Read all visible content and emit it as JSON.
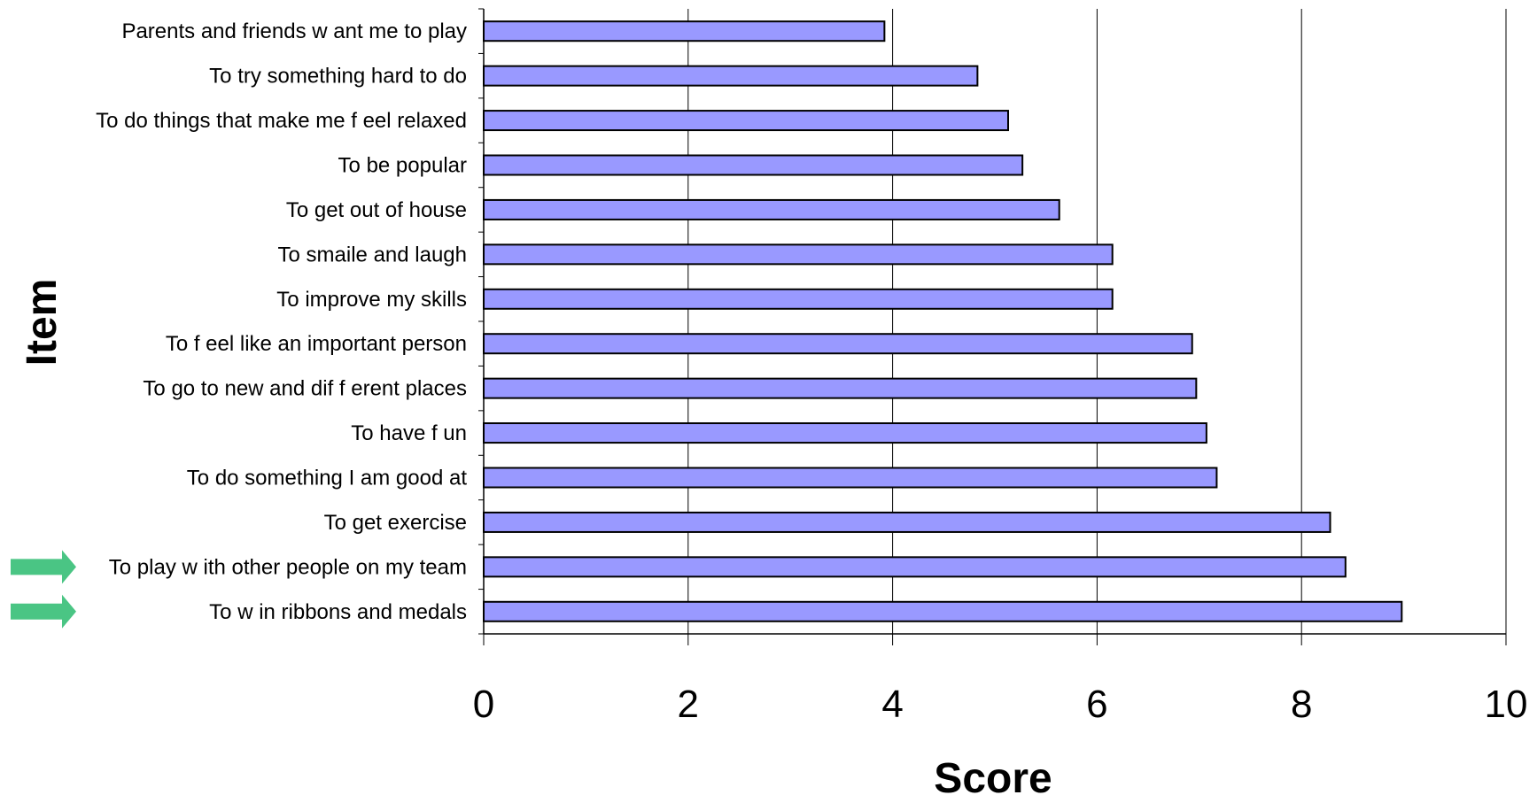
{
  "chart_data": {
    "type": "bar",
    "orientation": "horizontal",
    "categories": [
      "Parents and friends w ant me to play",
      "To try something hard to do",
      "To do things that make me f eel relaxed",
      "To be popular",
      "To get out of  house",
      "To smaile and laugh",
      "To improve my skills",
      "To f eel like an important person",
      "To go to new  and dif f erent places",
      "To have f un",
      "To do something I am good at",
      "To get exercise",
      "To play w ith other people on my team",
      "To w in ribbons and medals"
    ],
    "values": [
      3.92,
      4.83,
      5.13,
      5.27,
      5.63,
      6.15,
      6.15,
      6.93,
      6.97,
      7.07,
      7.17,
      8.28,
      8.43,
      8.98
    ],
    "highlighted": [
      false,
      false,
      false,
      false,
      false,
      false,
      false,
      false,
      false,
      false,
      false,
      false,
      true,
      true
    ],
    "xlabel": "Score",
    "ylabel": "Item",
    "xlim": [
      0,
      10
    ],
    "xticks": [
      "0",
      "2",
      "4",
      "6",
      "8",
      "10"
    ],
    "xtick_values": [
      0,
      2,
      4,
      6,
      8,
      10
    ],
    "grid": "vertical",
    "legend": "none",
    "colors": {
      "bar_fill": "#9999ff",
      "bar_stroke": "#000000",
      "gridline": "#000000",
      "arrow": "#4ac584"
    }
  }
}
